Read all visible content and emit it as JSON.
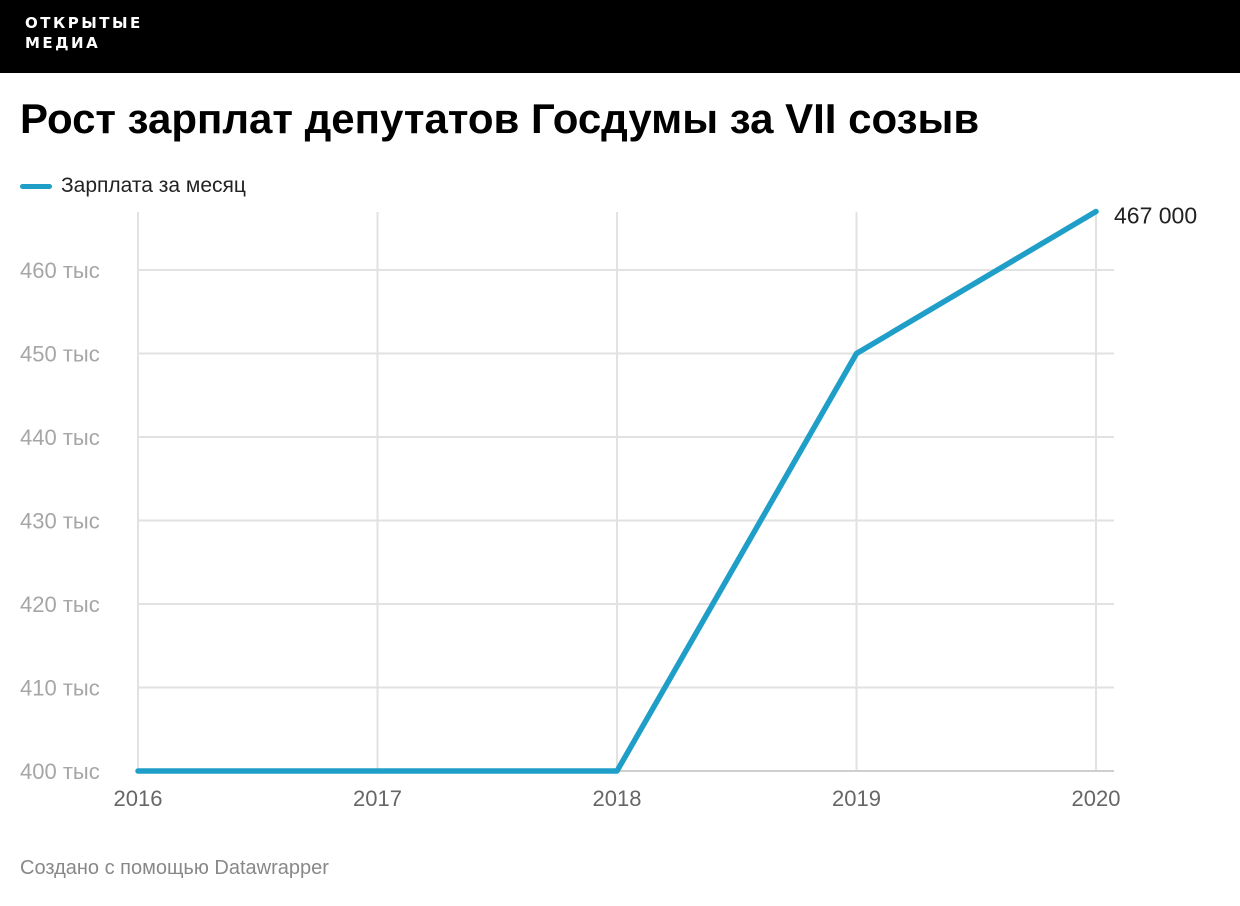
{
  "header": {
    "brand_line1": "ОТКРЫТЫЕ",
    "brand_line2": "МЕДИА"
  },
  "chart_data": {
    "type": "line",
    "title": "Рост зарплат депутатов Госдумы за VII созыв",
    "x": [
      "2016",
      "2017",
      "2018",
      "2019",
      "2020"
    ],
    "series": [
      {
        "name": "Зарплата за месяц",
        "color": "#1f9fc8",
        "values": [
          400000,
          400000,
          400000,
          450000,
          467000
        ]
      }
    ],
    "ylim": [
      400000,
      467000
    ],
    "yticks": [
      {
        "value": 400000,
        "label": "400 тыс"
      },
      {
        "value": 410000,
        "label": "410 тыс"
      },
      {
        "value": 420000,
        "label": "420 тыс"
      },
      {
        "value": 430000,
        "label": "430 тыс"
      },
      {
        "value": 440000,
        "label": "440 тыс"
      },
      {
        "value": 450000,
        "label": "450 тыс"
      },
      {
        "value": 460000,
        "label": "460 тыс"
      }
    ],
    "end_label": "467 000",
    "grid": true,
    "legend_position": "top-left"
  },
  "footer": {
    "credit": "Создано с помощью Datawrapper"
  }
}
